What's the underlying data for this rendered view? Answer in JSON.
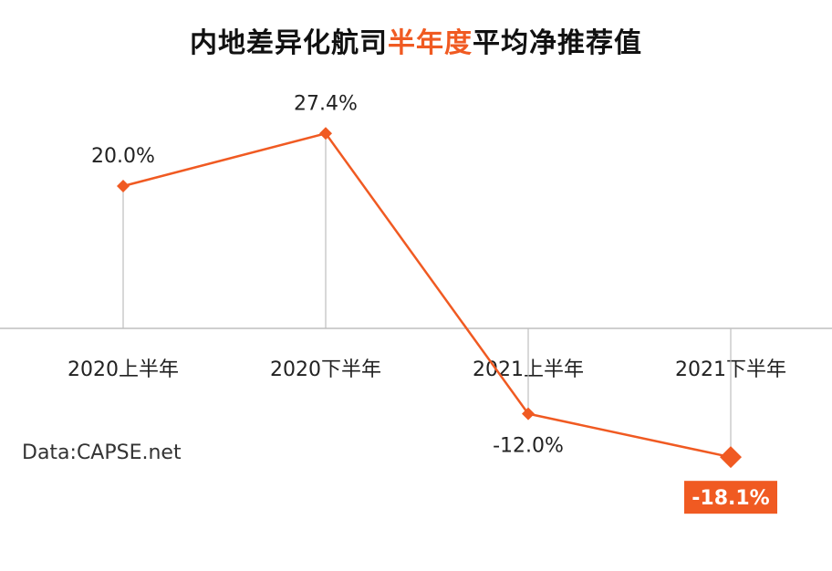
{
  "chart_data": {
    "type": "line",
    "title_parts": [
      "内地差异化航司",
      "半年度",
      "平均净推荐值"
    ],
    "categories": [
      "2020上半年",
      "2020下半年",
      "2021上半年",
      "2021下半年"
    ],
    "series": [
      {
        "values": [
          20.0,
          27.4,
          -12.0,
          -18.1
        ],
        "labels": [
          "20.0%",
          "27.4%",
          "-12.0%",
          "-18.1%"
        ]
      }
    ],
    "ylim": [
      -20,
      30
    ],
    "grid": false,
    "highlight_index": 3
  },
  "colors": {
    "series": "#f05a22",
    "axis": "#bfbfbf",
    "text": "#222222"
  },
  "source_note": "Data:CAPSE.net"
}
